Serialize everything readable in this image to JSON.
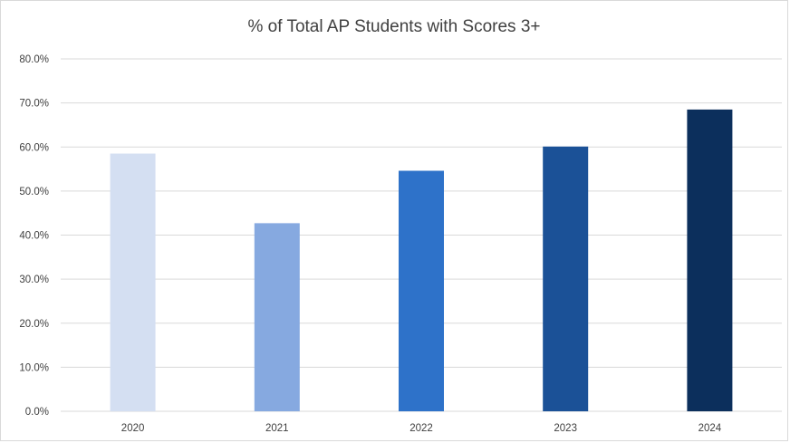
{
  "chart_data": {
    "type": "bar",
    "title": "% of Total AP Students with Scores 3+",
    "xlabel": "",
    "ylabel": "",
    "categories": [
      "2020",
      "2021",
      "2022",
      "2023",
      "2024"
    ],
    "values": [
      58.5,
      42.7,
      54.6,
      60.1,
      68.5
    ],
    "bar_colors": [
      "#d4dff2",
      "#86a9e0",
      "#2e72c9",
      "#1b5197",
      "#0c2f5c"
    ],
    "ylim": [
      0,
      80
    ],
    "yticks": [
      "0.0%",
      "10.0%",
      "20.0%",
      "30.0%",
      "40.0%",
      "50.0%",
      "60.0%",
      "70.0%",
      "80.0%"
    ],
    "grid": true,
    "legend": "none",
    "colors": {
      "gridline": "#d9d9d9",
      "text": "#404040"
    }
  }
}
